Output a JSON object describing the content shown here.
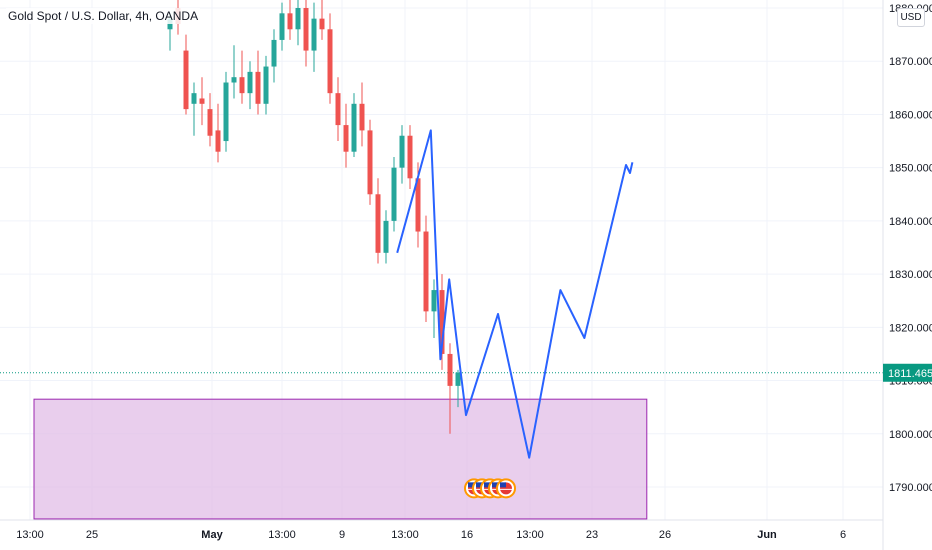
{
  "header": {
    "symbol_title": "Gold Spot / U.S. Dollar, 4h, OANDA",
    "currency": "USD"
  },
  "price_axis": {
    "ticks": [
      "1880.000",
      "1870.000",
      "1860.000",
      "1850.000",
      "1840.000",
      "1830.000",
      "1820.000",
      "1810.000",
      "1800.000",
      "1790.000"
    ],
    "current_price_label": "1811.465"
  },
  "time_axis": {
    "ticks": [
      "13:00",
      "25",
      "May",
      "13:00",
      "9",
      "13:00",
      "16",
      "13:00",
      "23",
      "26",
      "Jun",
      "6"
    ]
  },
  "colors": {
    "up": "#26a69a",
    "down": "#ef5350",
    "projection": "#2962ff",
    "zone_fill": "#e1bee7",
    "zone_border": "#9c27b0",
    "last_price": "#089981",
    "grid": "#f0f3fa"
  },
  "chart_data": {
    "type": "candlestick",
    "symbol": "Gold Spot / U.S. Dollar",
    "interval": "4h",
    "source": "OANDA",
    "ylim": [
      1785,
      1881
    ],
    "grid": true,
    "last_price": 1811.465,
    "candles": [
      {
        "t": 0,
        "o": 1876.0,
        "h": 1879.0,
        "l": 1872.0,
        "c": 1878.0
      },
      {
        "t": 1,
        "o": 1880.0,
        "h": 1883.0,
        "l": 1875.0,
        "c": 1877.0
      },
      {
        "t": 2,
        "o": 1872.0,
        "h": 1875.0,
        "l": 1860.0,
        "c": 1861.0
      },
      {
        "t": 3,
        "o": 1862.0,
        "h": 1866.0,
        "l": 1856.0,
        "c": 1864.0
      },
      {
        "t": 4,
        "o": 1863.0,
        "h": 1867.0,
        "l": 1858.0,
        "c": 1862.0
      },
      {
        "t": 5,
        "o": 1861.0,
        "h": 1864.0,
        "l": 1854.0,
        "c": 1856.0
      },
      {
        "t": 6,
        "o": 1857.0,
        "h": 1862.0,
        "l": 1851.0,
        "c": 1853.0
      },
      {
        "t": 7,
        "o": 1855.0,
        "h": 1868.0,
        "l": 1853.0,
        "c": 1866.0
      },
      {
        "t": 8,
        "o": 1866.0,
        "h": 1873.0,
        "l": 1863.0,
        "c": 1867.0
      },
      {
        "t": 9,
        "o": 1867.0,
        "h": 1872.0,
        "l": 1862.0,
        "c": 1864.0
      },
      {
        "t": 10,
        "o": 1864.0,
        "h": 1870.0,
        "l": 1861.0,
        "c": 1868.0
      },
      {
        "t": 11,
        "o": 1868.0,
        "h": 1872.0,
        "l": 1860.0,
        "c": 1862.0
      },
      {
        "t": 12,
        "o": 1862.0,
        "h": 1871.0,
        "l": 1860.0,
        "c": 1869.0
      },
      {
        "t": 13,
        "o": 1869.0,
        "h": 1876.0,
        "l": 1866.0,
        "c": 1874.0
      },
      {
        "t": 14,
        "o": 1874.0,
        "h": 1881.0,
        "l": 1872.0,
        "c": 1879.0
      },
      {
        "t": 15,
        "o": 1879.0,
        "h": 1882.0,
        "l": 1874.0,
        "c": 1876.0
      },
      {
        "t": 16,
        "o": 1876.0,
        "h": 1882.0,
        "l": 1873.0,
        "c": 1880.0
      },
      {
        "t": 17,
        "o": 1880.0,
        "h": 1883.0,
        "l": 1869.0,
        "c": 1872.0
      },
      {
        "t": 18,
        "o": 1872.0,
        "h": 1881.0,
        "l": 1868.0,
        "c": 1878.0
      },
      {
        "t": 19,
        "o": 1878.0,
        "h": 1883.0,
        "l": 1874.0,
        "c": 1876.0
      },
      {
        "t": 20,
        "o": 1876.0,
        "h": 1879.0,
        "l": 1862.0,
        "c": 1864.0
      },
      {
        "t": 21,
        "o": 1864.0,
        "h": 1867.0,
        "l": 1855.0,
        "c": 1858.0
      },
      {
        "t": 22,
        "o": 1858.0,
        "h": 1862.0,
        "l": 1850.0,
        "c": 1853.0
      },
      {
        "t": 23,
        "o": 1853.0,
        "h": 1864.0,
        "l": 1852.0,
        "c": 1862.0
      },
      {
        "t": 24,
        "o": 1862.0,
        "h": 1866.0,
        "l": 1854.0,
        "c": 1857.0
      },
      {
        "t": 25,
        "o": 1857.0,
        "h": 1859.0,
        "l": 1843.0,
        "c": 1845.0
      },
      {
        "t": 26,
        "o": 1845.0,
        "h": 1848.0,
        "l": 1832.0,
        "c": 1834.0
      },
      {
        "t": 27,
        "o": 1834.0,
        "h": 1842.0,
        "l": 1832.0,
        "c": 1840.0
      },
      {
        "t": 28,
        "o": 1840.0,
        "h": 1852.0,
        "l": 1838.0,
        "c": 1850.0
      },
      {
        "t": 29,
        "o": 1850.0,
        "h": 1858.0,
        "l": 1847.0,
        "c": 1856.0
      },
      {
        "t": 30,
        "o": 1856.0,
        "h": 1858.0,
        "l": 1846.0,
        "c": 1848.0
      },
      {
        "t": 31,
        "o": 1848.0,
        "h": 1851.0,
        "l": 1835.0,
        "c": 1838.0
      },
      {
        "t": 32,
        "o": 1838.0,
        "h": 1841.0,
        "l": 1821.0,
        "c": 1823.0
      },
      {
        "t": 33,
        "o": 1823.0,
        "h": 1829.0,
        "l": 1818.0,
        "c": 1827.0
      },
      {
        "t": 34,
        "o": 1827.0,
        "h": 1830.0,
        "l": 1812.0,
        "c": 1815.0
      },
      {
        "t": 35,
        "o": 1815.0,
        "h": 1817.0,
        "l": 1800.0,
        "c": 1809.0
      },
      {
        "t": 36,
        "o": 1809.0,
        "h": 1812.0,
        "l": 1805.0,
        "c": 1811.5
      }
    ],
    "projection_path": [
      {
        "t": 28.4,
        "y": 1834.0
      },
      {
        "t": 32.6,
        "y": 1857.0
      },
      {
        "t": 33.8,
        "y": 1814.0
      },
      {
        "t": 34.9,
        "y": 1829.0
      },
      {
        "t": 37.0,
        "y": 1803.5
      },
      {
        "t": 41.0,
        "y": 1822.5
      },
      {
        "t": 44.9,
        "y": 1795.5
      },
      {
        "t": 48.8,
        "y": 1827.0
      },
      {
        "t": 51.8,
        "y": 1818.0
      },
      {
        "t": 57.0,
        "y": 1850.5
      },
      {
        "t": 57.5,
        "y": 1849.0
      },
      {
        "t": 57.8,
        "y": 1851.0
      }
    ],
    "demand_zone": {
      "t_start": -17.0,
      "t_end": 59.6,
      "y_top": 1806.5,
      "y_bottom": 1784.0
    },
    "event_markers": {
      "count": 5,
      "t_start": 38.0,
      "t_end": 42.0,
      "y": 1792.0
    }
  }
}
